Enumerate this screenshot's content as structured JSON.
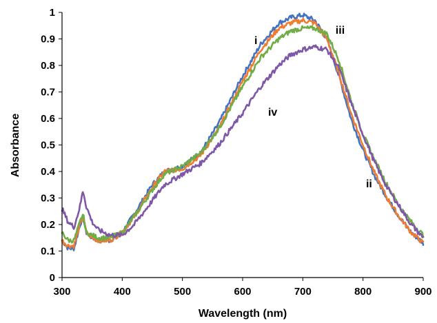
{
  "chart_data": {
    "type": "line",
    "title": "",
    "xlabel": "Wavelength (nm)",
    "ylabel": "Absorbance",
    "xlim": [
      300,
      900
    ],
    "ylim": [
      0,
      1
    ],
    "x_ticks": [
      "300",
      "400",
      "500",
      "600",
      "700",
      "800",
      "900"
    ],
    "y_ticks": [
      "0",
      "0.1",
      "0.2",
      "0.3",
      "0.4",
      "0.5",
      "0.6",
      "0.7",
      "0.8",
      "0.9",
      "1"
    ],
    "grid": false,
    "legend": "none",
    "x": [
      300,
      310,
      320,
      330,
      335,
      340,
      350,
      360,
      380,
      400,
      420,
      450,
      470,
      500,
      530,
      560,
      600,
      630,
      660,
      680,
      700,
      720,
      740,
      760,
      780,
      800,
      820,
      840,
      860,
      880,
      900
    ],
    "series": [
      {
        "name": "i",
        "color": "#4472C4",
        "values": [
          0.14,
          0.11,
          0.11,
          0.2,
          0.23,
          0.17,
          0.15,
          0.14,
          0.14,
          0.17,
          0.24,
          0.35,
          0.4,
          0.42,
          0.47,
          0.58,
          0.76,
          0.88,
          0.96,
          0.98,
          0.99,
          0.97,
          0.9,
          0.76,
          0.6,
          0.48,
          0.38,
          0.3,
          0.23,
          0.17,
          0.13
        ]
      },
      {
        "name": "ii",
        "color": "#ED7D31",
        "values": [
          0.14,
          0.12,
          0.12,
          0.2,
          0.23,
          0.17,
          0.15,
          0.14,
          0.14,
          0.17,
          0.23,
          0.34,
          0.4,
          0.41,
          0.46,
          0.56,
          0.74,
          0.86,
          0.94,
          0.96,
          0.97,
          0.96,
          0.9,
          0.77,
          0.62,
          0.5,
          0.39,
          0.3,
          0.23,
          0.17,
          0.13
        ]
      },
      {
        "name": "iii",
        "color": "#70AD47",
        "values": [
          0.17,
          0.14,
          0.14,
          0.21,
          0.24,
          0.17,
          0.16,
          0.15,
          0.15,
          0.17,
          0.23,
          0.33,
          0.39,
          0.42,
          0.47,
          0.56,
          0.72,
          0.83,
          0.9,
          0.93,
          0.94,
          0.94,
          0.92,
          0.82,
          0.67,
          0.54,
          0.44,
          0.35,
          0.27,
          0.21,
          0.16
        ]
      },
      {
        "name": "iv",
        "color": "#7E57A8",
        "values": [
          0.26,
          0.21,
          0.19,
          0.27,
          0.33,
          0.27,
          0.21,
          0.18,
          0.16,
          0.16,
          0.2,
          0.29,
          0.35,
          0.39,
          0.43,
          0.5,
          0.62,
          0.72,
          0.8,
          0.84,
          0.86,
          0.87,
          0.86,
          0.79,
          0.66,
          0.54,
          0.43,
          0.34,
          0.27,
          0.2,
          0.15
        ]
      }
    ],
    "series_labels": [
      {
        "text": "i",
        "x": 622,
        "y": 0.88
      },
      {
        "text": "ii",
        "x": 810,
        "y": 0.34
      },
      {
        "text": "iii",
        "x": 762,
        "y": 0.92
      },
      {
        "text": "iv",
        "x": 650,
        "y": 0.61
      }
    ]
  }
}
